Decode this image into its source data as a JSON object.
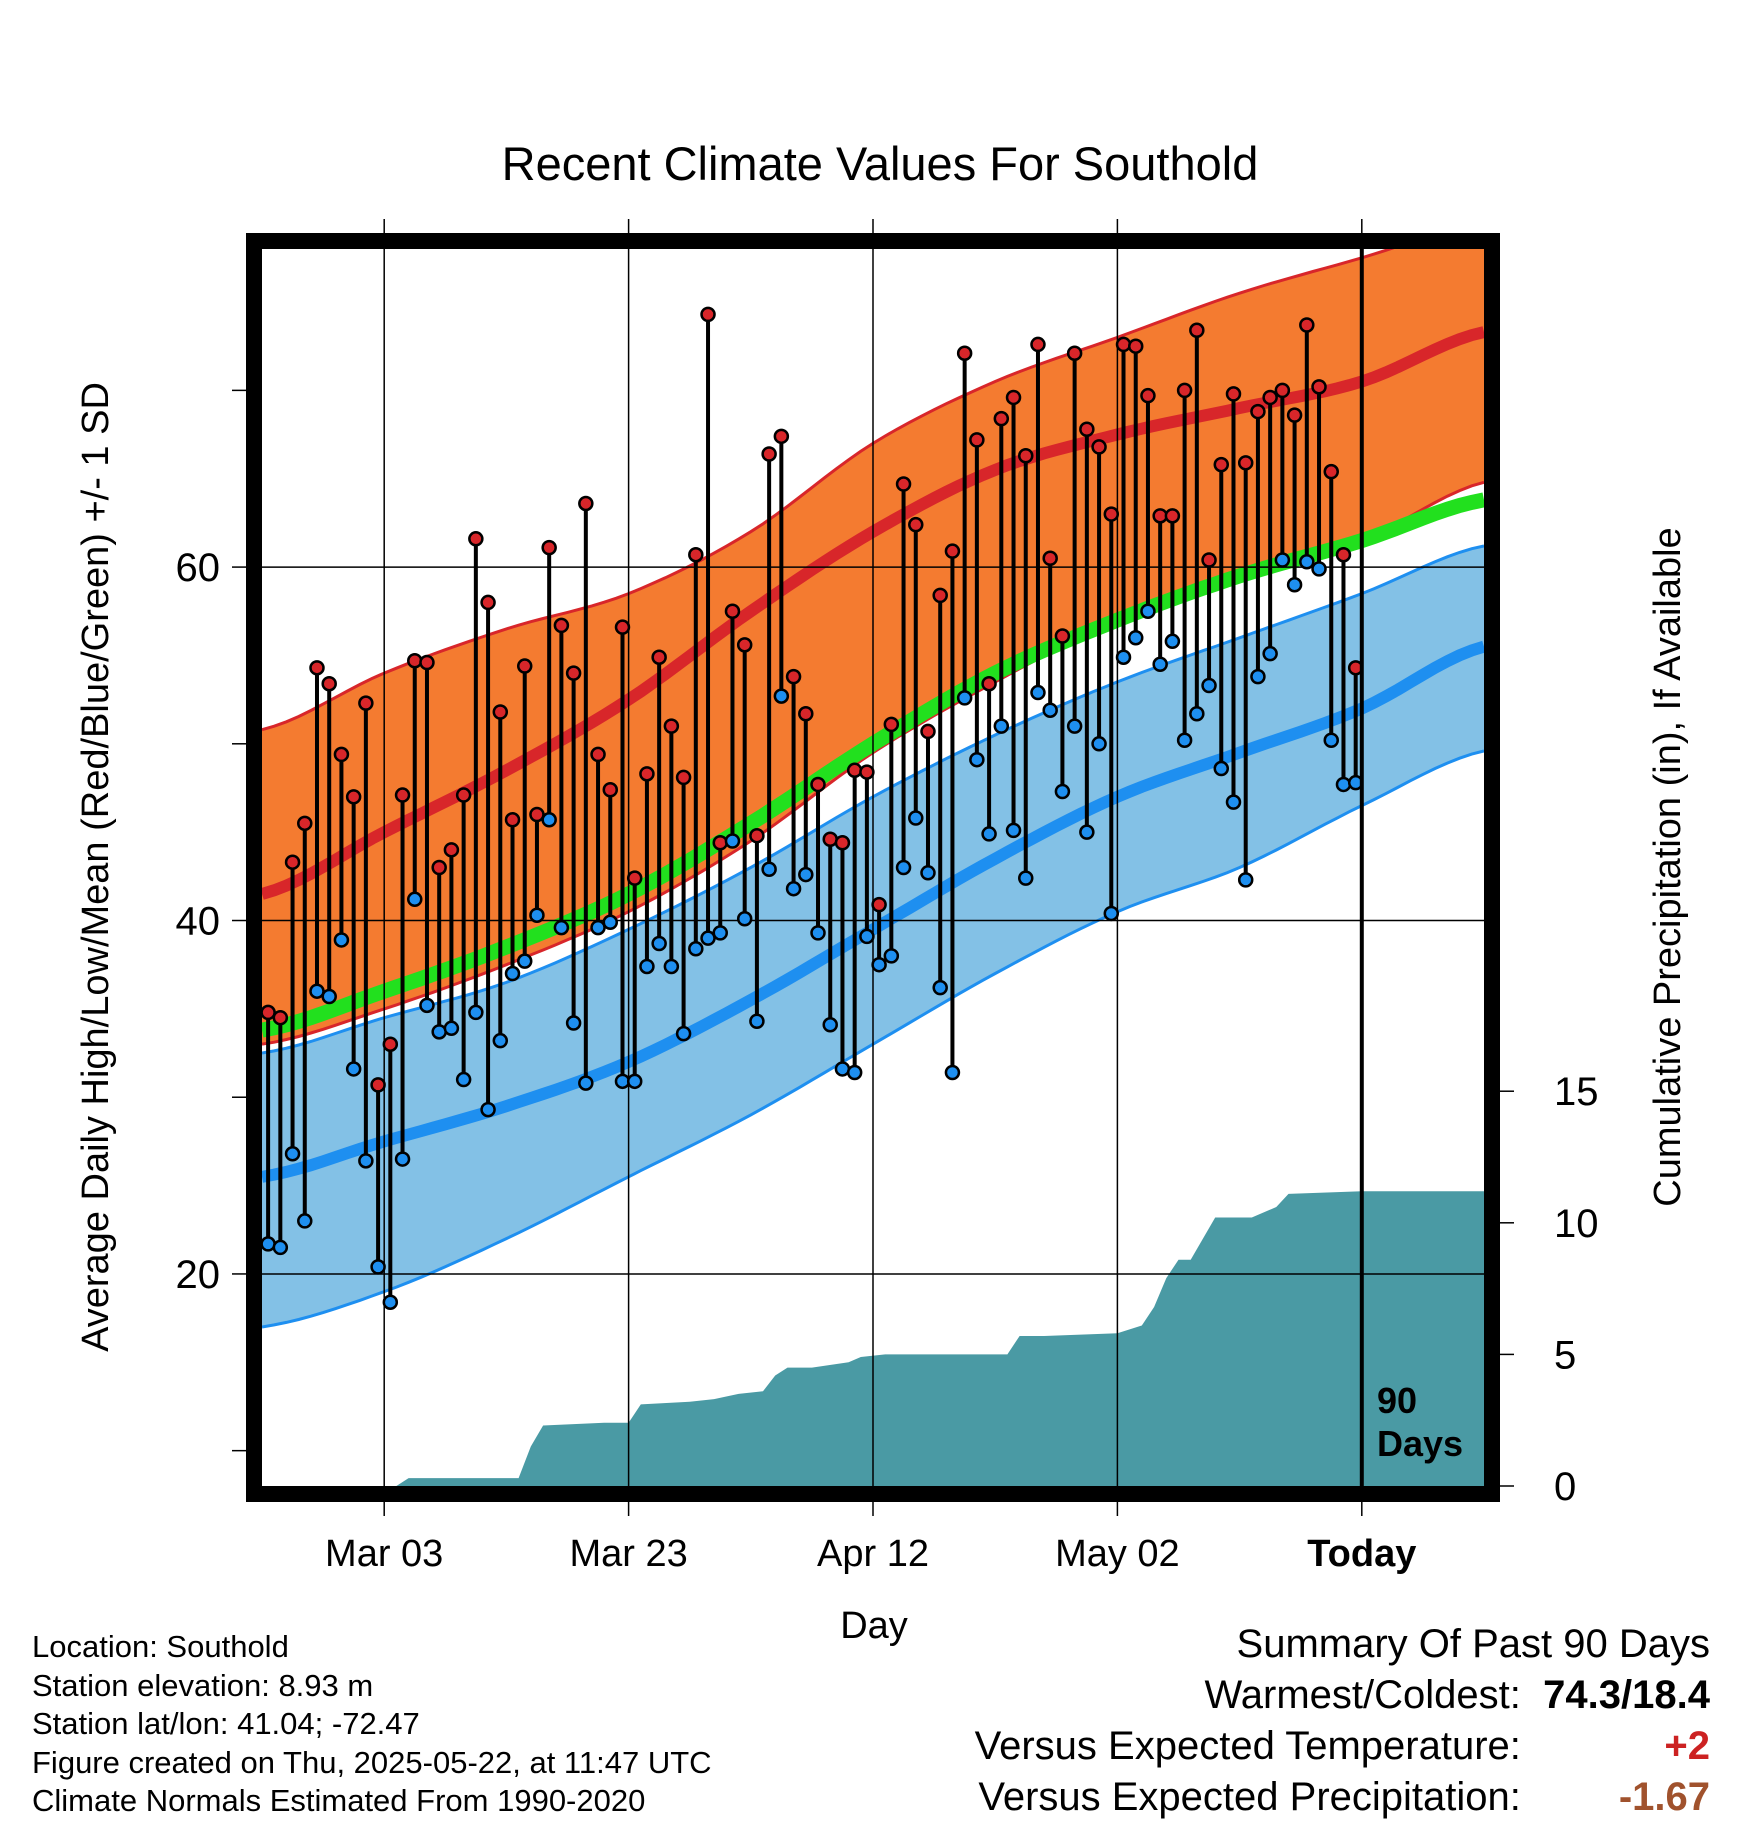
{
  "chart_data": {
    "type": "line",
    "title": "Recent Climate Values For Southold",
    "xlabel": "Day",
    "ylabel": "Average Daily High/Low/Mean (Red/Blue/Green) +/- 1 SD",
    "y2label": "Cumulative Precipitation (in), If Available",
    "x_ticks": [
      "Mar 03",
      "Mar 23",
      "Apr 12",
      "May 02",
      "Today"
    ],
    "y_ticks": [
      20,
      40,
      60
    ],
    "y2_ticks": [
      0,
      5,
      10,
      15
    ],
    "ylim": [
      8,
      78
    ],
    "y2lim": [
      0,
      47
    ],
    "x_range_dates": [
      "2025-02-21",
      "2025-06-01"
    ],
    "today": "2025-05-22",
    "marker_label": "90 Days",
    "grid": true,
    "normals": {
      "dates": [
        "2025-02-21",
        "2025-03-03",
        "2025-03-13",
        "2025-03-23",
        "2025-04-02",
        "2025-04-12",
        "2025-04-22",
        "2025-05-02",
        "2025-05-12",
        "2025-05-22",
        "2025-06-01"
      ],
      "high_mean": [
        41.5,
        45.0,
        48.5,
        52.5,
        57.5,
        62.0,
        65.5,
        67.5,
        69.0,
        70.5,
        73.3
      ],
      "high_sd_upper": [
        50.8,
        54.0,
        56.5,
        58.5,
        62.0,
        67.0,
        70.5,
        73.0,
        75.5,
        77.5,
        79.5
      ],
      "high_sd_lower": [
        33.0,
        35.0,
        37.5,
        40.5,
        44.5,
        49.5,
        53.5,
        57.0,
        59.5,
        61.5,
        64.8
      ],
      "normal_mean": [
        33.8,
        36.0,
        38.5,
        41.5,
        45.5,
        50.0,
        54.0,
        57.0,
        59.5,
        61.5,
        63.8
      ],
      "low_mean": [
        25.5,
        27.5,
        29.5,
        32.0,
        35.5,
        39.5,
        43.5,
        47.0,
        49.5,
        52.0,
        55.5
      ],
      "low_sd_upper": [
        32.5,
        34.5,
        36.5,
        39.5,
        43.0,
        47.0,
        50.5,
        53.5,
        56.0,
        58.5,
        61.2
      ],
      "low_sd_lower": [
        17.0,
        19.0,
        22.0,
        25.5,
        29.0,
        33.0,
        37.0,
        40.5,
        43.0,
        46.5,
        49.6
      ]
    },
    "series": [
      {
        "name": "High",
        "values": [
          34.8,
          34.5,
          43.3,
          45.5,
          54.3,
          53.4,
          49.4,
          47.0,
          52.3,
          30.7,
          33.0,
          47.1,
          54.7,
          54.6,
          43.0,
          44.0,
          47.1,
          61.6,
          58.0,
          51.8,
          45.7,
          54.4,
          46.0,
          61.1,
          56.7,
          54.0,
          63.6,
          49.4,
          47.4,
          56.6,
          42.4,
          48.3,
          54.9,
          51.0,
          48.1,
          60.7,
          74.3,
          44.4,
          57.5,
          55.6,
          44.8,
          66.4,
          67.4,
          53.8,
          51.7,
          47.7,
          44.6,
          44.4,
          48.5,
          48.4,
          40.9,
          51.1,
          64.7,
          62.4,
          50.7,
          58.4,
          60.9,
          72.1,
          67.2,
          53.4,
          68.4,
          69.6,
          66.3,
          72.6,
          60.5,
          56.1,
          72.1,
          67.8,
          66.8,
          63.0,
          72.6,
          72.5,
          69.7,
          62.9,
          62.9,
          70.0,
          73.4,
          60.4,
          65.8,
          69.8,
          65.9,
          68.8,
          69.6,
          70.0,
          68.6,
          73.7,
          70.2,
          65.4,
          60.7,
          54.3
        ]
      },
      {
        "name": "Low",
        "values": [
          21.7,
          21.5,
          26.8,
          23.0,
          36.0,
          35.7,
          38.9,
          31.6,
          26.4,
          20.4,
          18.4,
          26.5,
          41.2,
          35.2,
          33.7,
          33.9,
          31.0,
          34.8,
          29.3,
          33.2,
          37.0,
          37.7,
          40.3,
          45.7,
          39.6,
          34.2,
          30.8,
          39.6,
          39.9,
          30.9,
          30.9,
          37.4,
          38.7,
          37.4,
          33.6,
          38.4,
          39.0,
          39.3,
          44.5,
          40.1,
          34.3,
          42.9,
          52.7,
          41.8,
          42.6,
          39.3,
          34.1,
          31.6,
          31.4,
          39.1,
          37.5,
          38.0,
          43.0,
          45.8,
          42.7,
          36.2,
          31.4,
          52.6,
          49.1,
          44.9,
          51.0,
          45.1,
          42.4,
          52.9,
          51.9,
          47.3,
          51.0,
          45.0,
          50.0,
          40.4,
          54.9,
          56.0,
          57.5,
          54.5,
          55.8,
          50.2,
          51.7,
          53.3,
          48.6,
          46.7,
          42.3,
          53.8,
          55.1,
          60.4,
          59.0,
          60.3,
          59.9,
          50.2,
          47.7,
          47.8
        ]
      }
    ],
    "precipitation": {
      "dates": [
        "2025-02-21",
        "2025-03-04",
        "2025-03-05",
        "2025-03-14",
        "2025-03-15",
        "2025-03-16",
        "2025-03-21",
        "2025-03-23",
        "2025-03-24",
        "2025-03-28",
        "2025-03-30",
        "2025-04-01",
        "2025-04-03",
        "2025-04-04",
        "2025-04-05",
        "2025-04-07",
        "2025-04-10",
        "2025-04-11",
        "2025-04-13",
        "2025-04-23",
        "2025-04-24",
        "2025-04-26",
        "2025-05-02",
        "2025-05-04",
        "2025-05-05",
        "2025-05-06",
        "2025-05-07",
        "2025-05-08",
        "2025-05-10",
        "2025-05-13",
        "2025-05-15",
        "2025-05-16",
        "2025-05-22",
        "2025-06-01"
      ],
      "values": [
        0,
        0,
        0.3,
        0.3,
        1.5,
        2.3,
        2.4,
        2.4,
        3.1,
        3.2,
        3.3,
        3.5,
        3.6,
        4.2,
        4.5,
        4.5,
        4.7,
        4.9,
        5.0,
        5.0,
        5.7,
        5.7,
        5.8,
        6.1,
        6.8,
        7.9,
        8.6,
        8.6,
        10.2,
        10.2,
        10.6,
        11.1,
        11.2,
        11.2
      ]
    }
  },
  "info": {
    "location": "Location: Southold",
    "elevation": "Station elevation: 8.93 m",
    "latlon": "Station lat/lon: 41.04; -72.47",
    "created": "Figure created on Thu, 2025-05-22, at 11:47 UTC",
    "normals": "Climate Normals Estimated From 1990-2020"
  },
  "summary": {
    "title": "Summary Of Past 90 Days",
    "warm_cold_label": "Warmest/Coldest:",
    "warm_cold_value": "74.3/18.4",
    "temp_label": "Versus Expected Temperature:",
    "temp_value": "+2",
    "precip_label": "Versus Expected Precipitation:",
    "precip_value": "-1.67",
    "colors": {
      "temp_value": "#cc2222",
      "precip_value": "#a0522d"
    }
  },
  "colors": {
    "high_band": "#f47b30",
    "high_band_edge": "#d8262a",
    "high_mean": "#d8262a",
    "low_band": "#83c1e6",
    "low_band_edge": "#1e8ff0",
    "low_mean": "#1e8ff0",
    "normal_mean": "#22e01e",
    "precip": "#4a9aa4",
    "high_dot": "#d8262a",
    "low_dot": "#1e8ff0"
  }
}
